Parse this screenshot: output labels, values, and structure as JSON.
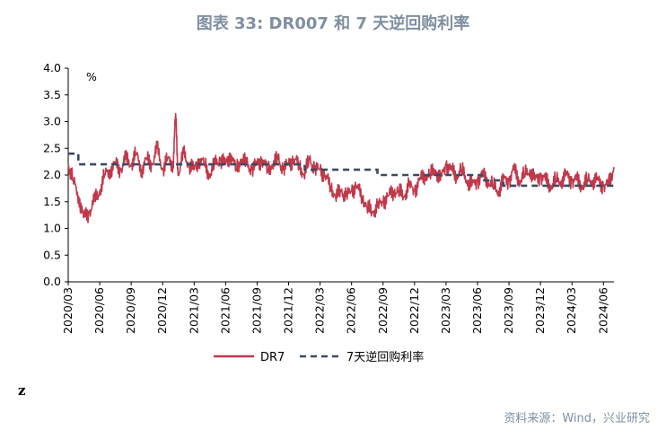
{
  "title": "图表 33: DR007 和 7 天逆回购利率",
  "footer_mark": "z",
  "source": "资料来源：Wind，兴业研究",
  "chart_data": {
    "type": "line",
    "unit_label": "%",
    "ylim": [
      0.0,
      4.0
    ],
    "y_ticks": [
      "0.0",
      "0.5",
      "1.0",
      "1.5",
      "2.0",
      "2.5",
      "3.0",
      "3.5",
      "4.0"
    ],
    "x_range": [
      "2020-03",
      "2024-07"
    ],
    "x_tick_labels": [
      "2020/03",
      "2020/06",
      "2020/09",
      "2020/12",
      "2021/03",
      "2021/06",
      "2021/09",
      "2021/12",
      "2022/03",
      "2022/06",
      "2022/09",
      "2022/12",
      "2023/03",
      "2023/06",
      "2023/09",
      "2023/12",
      "2024/03",
      "2024/06"
    ],
    "grid": false,
    "legend_position": "bottom",
    "colors": {
      "dr7": "#c0394b",
      "reverse_repo": "#3a4a62"
    },
    "series": [
      {
        "name": "DR7",
        "style": "solid",
        "x": [
          "2020-03",
          "2020-03-15",
          "2020-04",
          "2020-04-15",
          "2020-05",
          "2020-05-15",
          "2020-06",
          "2020-06-15",
          "2020-07",
          "2020-07-15",
          "2020-08",
          "2020-08-15",
          "2020-09",
          "2020-09-15",
          "2020-10",
          "2020-10-15",
          "2020-11",
          "2020-11-15",
          "2020-12",
          "2020-12-15",
          "2021-01",
          "2021-01-08",
          "2021-01-15",
          "2021-02",
          "2021-02-15",
          "2021-03",
          "2021-03-15",
          "2021-04",
          "2021-04-15",
          "2021-05",
          "2021-05-15",
          "2021-06",
          "2021-06-15",
          "2021-07",
          "2021-07-15",
          "2021-08",
          "2021-08-15",
          "2021-09",
          "2021-09-15",
          "2021-10",
          "2021-10-15",
          "2021-11",
          "2021-11-15",
          "2021-12",
          "2021-12-15",
          "2022-01",
          "2022-01-15",
          "2022-02",
          "2022-02-15",
          "2022-03",
          "2022-03-15",
          "2022-04",
          "2022-04-15",
          "2022-05",
          "2022-05-15",
          "2022-06",
          "2022-06-15",
          "2022-07",
          "2022-07-15",
          "2022-08",
          "2022-08-15",
          "2022-09",
          "2022-09-15",
          "2022-10",
          "2022-10-15",
          "2022-11",
          "2022-11-15",
          "2022-12",
          "2022-12-15",
          "2023-01",
          "2023-01-15",
          "2023-02",
          "2023-02-15",
          "2023-03",
          "2023-03-15",
          "2023-04",
          "2023-04-15",
          "2023-05",
          "2023-05-15",
          "2023-06",
          "2023-06-15",
          "2023-07",
          "2023-07-15",
          "2023-08",
          "2023-08-15",
          "2023-09",
          "2023-09-15",
          "2023-10",
          "2023-10-15",
          "2023-11",
          "2023-11-15",
          "2023-12",
          "2023-12-15",
          "2024-01",
          "2024-01-15",
          "2024-02",
          "2024-02-15",
          "2024-03",
          "2024-03-15",
          "2024-04",
          "2024-04-15",
          "2024-05",
          "2024-05-15",
          "2024-06",
          "2024-06-15",
          "2024-07"
        ],
        "values": [
          2.2,
          1.9,
          1.6,
          1.2,
          1.3,
          1.5,
          1.7,
          2.0,
          2.1,
          2.2,
          2.1,
          2.3,
          2.2,
          2.4,
          2.1,
          2.3,
          2.2,
          2.5,
          2.1,
          2.3,
          2.2,
          3.15,
          2.0,
          2.4,
          2.2,
          2.1,
          2.3,
          2.2,
          2.0,
          2.2,
          2.3,
          2.2,
          2.4,
          2.1,
          2.3,
          2.2,
          2.1,
          2.2,
          2.3,
          2.1,
          2.2,
          2.3,
          2.1,
          2.2,
          2.3,
          2.2,
          2.0,
          2.3,
          2.1,
          2.1,
          2.0,
          1.8,
          1.6,
          1.7,
          1.6,
          1.7,
          1.8,
          1.6,
          1.4,
          1.3,
          1.4,
          1.5,
          1.6,
          1.7,
          1.7,
          1.6,
          1.8,
          1.7,
          1.9,
          2.0,
          2.0,
          2.1,
          1.9,
          2.2,
          2.1,
          2.0,
          2.1,
          1.9,
          1.8,
          1.9,
          2.0,
          1.9,
          1.8,
          1.7,
          1.9,
          1.9,
          2.1,
          1.9,
          2.0,
          2.1,
          1.9,
          2.0,
          1.9,
          1.8,
          1.9,
          1.9,
          2.0,
          1.9,
          1.9,
          1.8,
          1.9,
          1.9,
          1.9,
          1.8,
          1.8,
          2.15
        ]
      },
      {
        "name": "7天逆回购利率",
        "style": "dashed",
        "x": [
          "2020-03",
          "2020-03-30",
          "2020-11-01",
          "2022-01-17",
          "2022-08-15",
          "2023-06-13",
          "2023-08-15",
          "2024-07"
        ],
        "values": [
          2.4,
          2.2,
          2.2,
          2.1,
          2.0,
          1.9,
          1.8,
          1.8
        ]
      }
    ]
  }
}
